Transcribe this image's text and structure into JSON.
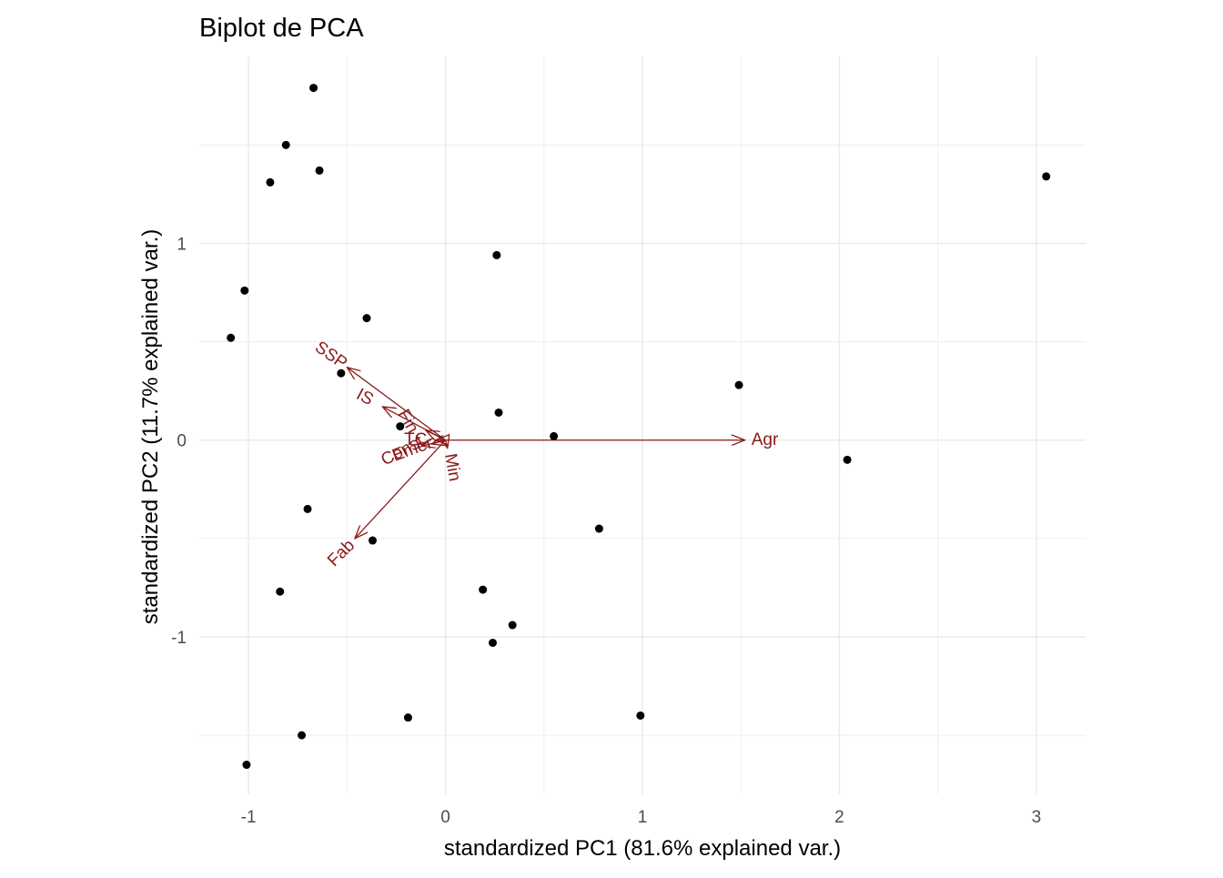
{
  "chart_data": {
    "type": "scatter",
    "title": "Biplot de PCA",
    "xlabel": "standardized PC1 (81.6% explained var.)",
    "ylabel": "standardized PC2 (11.7% explained var.)",
    "xlim": [
      -1.25,
      3.25
    ],
    "ylim": [
      -1.8,
      1.95
    ],
    "grid": true,
    "x_ticks": [
      -1,
      0,
      1,
      2,
      3
    ],
    "x_tick_labels": [
      "-1",
      "0",
      "1",
      "2",
      "3"
    ],
    "y_ticks": [
      -1,
      0,
      1
    ],
    "y_tick_labels": [
      "-1",
      "0",
      "1"
    ],
    "points": [
      {
        "x": -0.67,
        "y": 1.79
      },
      {
        "x": -0.81,
        "y": 1.5
      },
      {
        "x": -0.64,
        "y": 1.37
      },
      {
        "x": -0.89,
        "y": 1.31
      },
      {
        "x": 3.05,
        "y": 1.34
      },
      {
        "x": 0.26,
        "y": 0.94
      },
      {
        "x": -1.02,
        "y": 0.76
      },
      {
        "x": -0.4,
        "y": 0.62
      },
      {
        "x": -1.09,
        "y": 0.52
      },
      {
        "x": -0.53,
        "y": 0.34
      },
      {
        "x": 1.49,
        "y": 0.28
      },
      {
        "x": 0.27,
        "y": 0.14
      },
      {
        "x": -0.23,
        "y": 0.07
      },
      {
        "x": 0.55,
        "y": 0.02
      },
      {
        "x": 2.04,
        "y": -0.1
      },
      {
        "x": -0.7,
        "y": -0.35
      },
      {
        "x": 0.78,
        "y": -0.45
      },
      {
        "x": -0.37,
        "y": -0.51
      },
      {
        "x": -0.84,
        "y": -0.77
      },
      {
        "x": 0.19,
        "y": -0.76
      },
      {
        "x": 0.34,
        "y": -0.94
      },
      {
        "x": 0.24,
        "y": -1.03
      },
      {
        "x": 0.99,
        "y": -1.4
      },
      {
        "x": -0.19,
        "y": -1.41
      },
      {
        "x": -0.73,
        "y": -1.5
      },
      {
        "x": -1.01,
        "y": -1.65
      }
    ],
    "loadings": [
      {
        "name": "Agr",
        "x": 1.52,
        "y": 0.0,
        "label_angle": 0
      },
      {
        "name": "SSP",
        "x": -0.5,
        "y": 0.37,
        "label_angle": 35
      },
      {
        "name": "IS",
        "x": -0.32,
        "y": 0.17,
        "label_angle": 28
      },
      {
        "name": "Fin",
        "x": -0.1,
        "y": 0.05,
        "label_angle": 60
      },
      {
        "name": "TC",
        "x": -0.05,
        "y": 0.0,
        "label_angle": 0
      },
      {
        "name": "Const",
        "x": -0.12,
        "y": -0.03,
        "label_angle": -28
      },
      {
        "name": "Emer",
        "x": -0.07,
        "y": -0.02,
        "label_angle": -20
      },
      {
        "name": "Min",
        "x": 0.01,
        "y": -0.04,
        "label_angle": 80
      },
      {
        "name": "Fab",
        "x": -0.46,
        "y": -0.5,
        "label_angle": -45
      }
    ],
    "point_color": "#000000",
    "arrow_color": "#8b1a1a",
    "grid_color": "#ebebeb"
  }
}
